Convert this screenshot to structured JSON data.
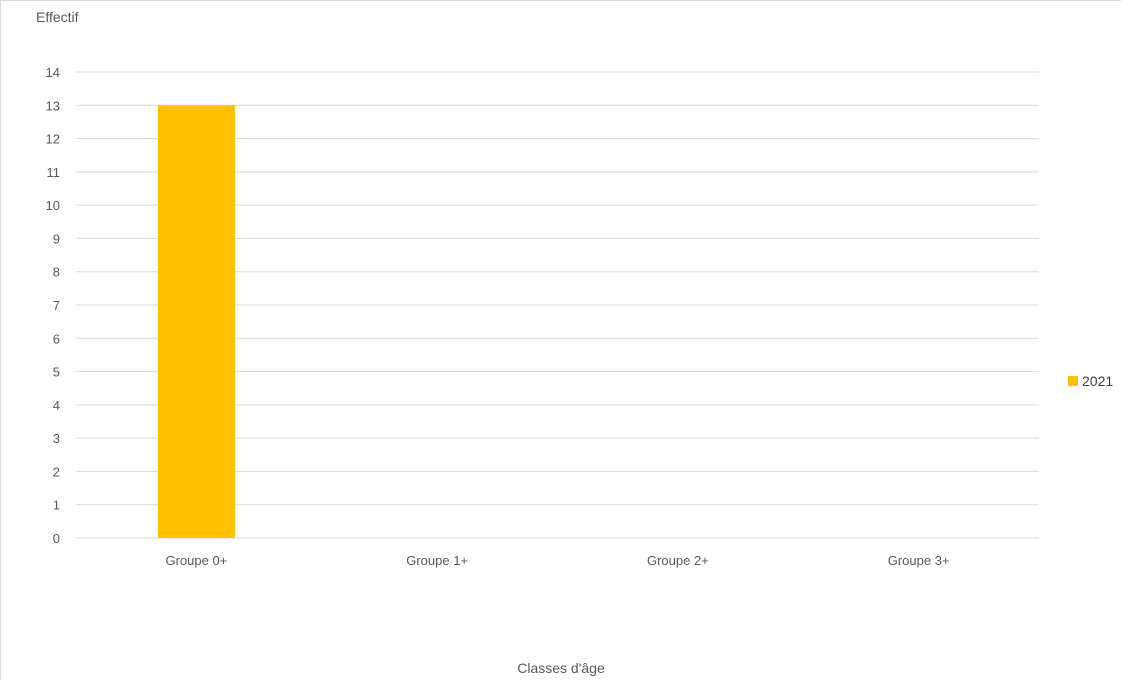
{
  "chart_data": {
    "type": "bar",
    "categories": [
      "Groupe 0+",
      "Groupe 1+",
      "Groupe 2+",
      "Groupe 3+"
    ],
    "series": [
      {
        "name": "2021",
        "values": [
          13,
          0,
          0,
          0
        ],
        "color": "#ffc000"
      }
    ],
    "xlabel": "Classes d'âge",
    "ylabel": "Effectif",
    "ylim": [
      0,
      14
    ],
    "yticks": [
      0,
      1,
      2,
      3,
      4,
      5,
      6,
      7,
      8,
      9,
      10,
      11,
      12,
      13,
      14
    ],
    "grid": true,
    "legend_position": "right",
    "colors": {
      "grid": "#d9d9d9",
      "text": "#595959"
    }
  }
}
